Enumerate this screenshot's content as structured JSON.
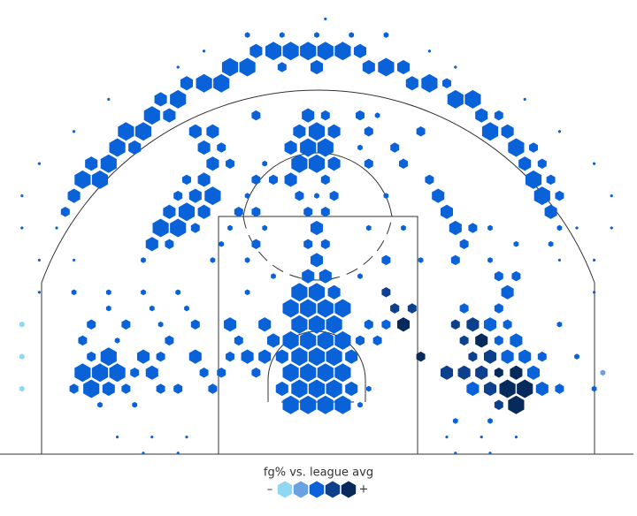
{
  "chart_data": {
    "type": "hexbin",
    "legend_title": "fg% vs. league avg",
    "legend_low": "–",
    "legend_high": "+",
    "colors": [
      "#8fd8f2",
      "#6aa1e3",
      "#0a62d8",
      "#0c3f8c",
      "#062a5c"
    ],
    "hexes": [
      [
        -2.1,
        -1.3,
        10,
        2
      ],
      [
        -0.7,
        -1.3,
        10,
        2
      ],
      [
        0.7,
        -1.3,
        10,
        2
      ],
      [
        2.1,
        -1.3,
        10,
        2
      ],
      [
        -2.8,
        0,
        6,
        2
      ],
      [
        -1.4,
        0,
        10,
        2
      ],
      [
        0,
        0,
        10,
        2
      ],
      [
        1.4,
        0,
        10,
        2
      ],
      [
        2.8,
        0,
        6,
        2
      ],
      [
        -2.1,
        1.3,
        10,
        2
      ],
      [
        -0.7,
        1.3,
        10,
        2
      ],
      [
        0.7,
        1.3,
        10,
        2
      ],
      [
        2.1,
        1.3,
        10,
        2
      ],
      [
        -2.8,
        2.6,
        6,
        2
      ],
      [
        -1.4,
        2.6,
        10,
        2
      ],
      [
        0,
        2.6,
        10,
        2
      ],
      [
        1.4,
        2.6,
        10,
        2
      ],
      [
        2.8,
        2.6,
        6,
        2
      ],
      [
        -2.1,
        3.9,
        10,
        2
      ],
      [
        -0.7,
        3.9,
        10,
        2
      ],
      [
        0.7,
        3.9,
        10,
        2
      ],
      [
        2.1,
        3.9,
        10,
        2
      ],
      [
        -1.4,
        5.2,
        10,
        2
      ],
      [
        0,
        5.2,
        10,
        2
      ],
      [
        1.4,
        5.2,
        10,
        2
      ],
      [
        -2.1,
        6.5,
        10,
        2
      ],
      [
        -0.7,
        6.5,
        10,
        2
      ],
      [
        0.7,
        6.5,
        10,
        2
      ],
      [
        2.1,
        6.5,
        10,
        2
      ],
      [
        -1.4,
        7.8,
        10,
        2
      ],
      [
        0,
        7.8,
        10,
        2
      ],
      [
        1.4,
        7.8,
        6,
        2
      ],
      [
        -0.7,
        9.1,
        6,
        2
      ],
      [
        0.7,
        9.1,
        6,
        2
      ],
      [
        0,
        10.4,
        6,
        2
      ],
      [
        -0.7,
        11.7,
        3,
        2
      ],
      [
        0.7,
        11.7,
        3,
        2
      ],
      [
        0,
        13,
        6,
        2
      ],
      [
        -0.7,
        14.3,
        3,
        2
      ],
      [
        0.7,
        14.3,
        3,
        2
      ],
      [
        -4.2,
        5.2,
        6,
        2
      ],
      [
        -7,
        5.2,
        6,
        2
      ],
      [
        -6.3,
        3.9,
        3,
        2
      ],
      [
        -3.5,
        3.9,
        6,
        2
      ],
      [
        -7,
        2.6,
        3,
        2
      ],
      [
        -5.6,
        2.6,
        6,
        2
      ],
      [
        -4.2,
        2.6,
        6,
        2
      ],
      [
        -4.9,
        1.3,
        3,
        2
      ],
      [
        -7.7,
        1.3,
        3,
        2
      ],
      [
        3.5,
        3.9,
        3,
        2
      ],
      [
        4.9,
        3.9,
        3,
        2
      ],
      [
        4.2,
        5.2,
        3,
        2
      ],
      [
        5.6,
        5.2,
        3,
        2
      ],
      [
        6.3,
        6.5,
        3,
        2
      ],
      [
        4.2,
        0,
        1,
        2
      ],
      [
        3.5,
        -1.3,
        1,
        2
      ],
      [
        -1.4,
        18.2,
        10,
        2
      ],
      [
        0,
        18.2,
        10,
        2
      ],
      [
        1.4,
        18.2,
        6,
        2
      ],
      [
        -0.7,
        19.5,
        10,
        2
      ],
      [
        0.7,
        19.5,
        10,
        2
      ],
      [
        -2.1,
        19.5,
        6,
        2
      ],
      [
        0,
        20.8,
        10,
        2
      ],
      [
        -1.4,
        20.8,
        6,
        2
      ],
      [
        1.4,
        20.8,
        6,
        2
      ],
      [
        -0.7,
        22.1,
        6,
        2
      ],
      [
        0.7,
        22.1,
        3,
        2
      ],
      [
        -2.1,
        16.9,
        6,
        2
      ],
      [
        0.7,
        16.9,
        3,
        2
      ],
      [
        -1.4,
        15.6,
        3,
        2
      ],
      [
        1.4,
        15.6,
        3,
        2
      ],
      [
        0,
        15.6,
        1,
        2
      ],
      [
        -0.7,
        27.3,
        10,
        2
      ],
      [
        0.7,
        27.3,
        10,
        2
      ],
      [
        -2.1,
        27.3,
        10,
        2
      ],
      [
        2.1,
        27.3,
        10,
        2
      ],
      [
        -3.5,
        27.3,
        10,
        2
      ],
      [
        3.5,
        27.3,
        6,
        2
      ],
      [
        -4.9,
        27.3,
        6,
        2
      ],
      [
        -5.6,
        26,
        10,
        2
      ],
      [
        -7,
        26,
        10,
        2
      ],
      [
        5.6,
        26,
        10,
        2
      ],
      [
        7,
        26,
        6,
        2
      ],
      [
        0,
        26,
        6,
        2
      ],
      [
        -2.8,
        26,
        3,
        2
      ],
      [
        4.2,
        26,
        6,
        2
      ],
      [
        -7.7,
        24.7,
        10,
        2
      ],
      [
        -9.1,
        24.7,
        10,
        2
      ],
      [
        7.7,
        24.7,
        6,
        2
      ],
      [
        9.1,
        24.7,
        10,
        2
      ],
      [
        -10.5,
        24.7,
        6,
        2
      ],
      [
        10.5,
        24.7,
        3,
        2
      ],
      [
        -11.2,
        23.4,
        10,
        2
      ],
      [
        -12.6,
        23.4,
        6,
        2
      ],
      [
        11.2,
        23.4,
        10,
        2
      ],
      [
        12.6,
        23.4,
        10,
        2
      ],
      [
        -13.3,
        22.1,
        10,
        2
      ],
      [
        -11.9,
        22.1,
        6,
        2
      ],
      [
        13.3,
        22.1,
        6,
        2
      ],
      [
        14.7,
        22.1,
        3,
        2
      ],
      [
        -14,
        20.8,
        10,
        2
      ],
      [
        -15.4,
        20.8,
        10,
        2
      ],
      [
        14,
        20.8,
        10,
        2
      ],
      [
        15.4,
        20.8,
        6,
        2
      ],
      [
        -16.1,
        19.5,
        10,
        2
      ],
      [
        -14.7,
        19.5,
        6,
        2
      ],
      [
        16.1,
        19.5,
        10,
        2
      ],
      [
        17.5,
        19.5,
        3,
        2
      ],
      [
        -16.8,
        18.2,
        10,
        2
      ],
      [
        -18.2,
        18.2,
        6,
        2
      ],
      [
        16.8,
        18.2,
        6,
        2
      ],
      [
        18.2,
        18.2,
        3,
        2
      ],
      [
        -17.5,
        16.9,
        10,
        2
      ],
      [
        -18.9,
        16.9,
        10,
        2
      ],
      [
        17.5,
        16.9,
        10,
        2
      ],
      [
        18.9,
        16.9,
        3,
        2
      ],
      [
        -19.6,
        15.6,
        6,
        2
      ],
      [
        18.2,
        15.6,
        10,
        2
      ],
      [
        19.6,
        15.6,
        3,
        2
      ],
      [
        -20.3,
        14.3,
        3,
        2
      ],
      [
        18.9,
        14.3,
        6,
        2
      ],
      [
        0,
        28.6,
        1,
        2
      ],
      [
        -2.8,
        28.6,
        1,
        2
      ],
      [
        2.8,
        28.6,
        1,
        2
      ],
      [
        -5.6,
        28.6,
        1,
        2
      ],
      [
        5.6,
        28.6,
        1,
        2
      ],
      [
        0.7,
        29.9,
        0.3,
        2
      ],
      [
        -9.1,
        16.9,
        6,
        2
      ],
      [
        -10.5,
        16.9,
        3,
        2
      ],
      [
        -8.4,
        15.6,
        10,
        2
      ],
      [
        -9.8,
        15.6,
        6,
        2
      ],
      [
        -11.2,
        15.6,
        3,
        2
      ],
      [
        -9.1,
        14.3,
        6,
        2
      ],
      [
        -10.5,
        14.3,
        10,
        2
      ],
      [
        -11.9,
        14.3,
        6,
        2
      ],
      [
        -11.2,
        13,
        10,
        2
      ],
      [
        -12.6,
        13,
        10,
        2
      ],
      [
        -9.8,
        13,
        3,
        2
      ],
      [
        -13.3,
        11.7,
        6,
        2
      ],
      [
        -11.9,
        11.7,
        3,
        2
      ],
      [
        -8.4,
        18.2,
        6,
        2
      ],
      [
        -7,
        18.2,
        3,
        2
      ],
      [
        -9.1,
        19.5,
        6,
        2
      ],
      [
        -7.7,
        19.5,
        3,
        2
      ],
      [
        -9.8,
        20.8,
        6,
        2
      ],
      [
        -8.4,
        20.8,
        6,
        2
      ],
      [
        -4.9,
        16.9,
        3,
        2
      ],
      [
        -3.5,
        16.9,
        3,
        2
      ],
      [
        -4.9,
        14.3,
        3,
        2
      ],
      [
        -6.3,
        14.3,
        3,
        2
      ],
      [
        -4.9,
        22.1,
        3,
        2
      ],
      [
        -7.7,
        11.7,
        1,
        2
      ],
      [
        -4.9,
        11.7,
        3,
        2
      ],
      [
        9.8,
        15.6,
        6,
        2
      ],
      [
        10.5,
        14.3,
        6,
        2
      ],
      [
        11.2,
        13,
        6,
        2
      ],
      [
        12.6,
        13,
        3,
        2
      ],
      [
        11.9,
        11.7,
        3,
        2
      ],
      [
        9.1,
        16.9,
        3,
        2
      ],
      [
        7,
        18.2,
        3,
        2
      ],
      [
        6.3,
        19.5,
        3,
        2
      ],
      [
        4.2,
        20.8,
        3,
        2
      ],
      [
        8.4,
        20.8,
        3,
        2
      ],
      [
        -16.8,
        2.6,
        10,
        2
      ],
      [
        -18.2,
        2.6,
        3,
        2
      ],
      [
        -14,
        2.6,
        6,
        2
      ],
      [
        -12.6,
        2.6,
        3,
        2
      ],
      [
        -17.5,
        1.3,
        10,
        2
      ],
      [
        -16.1,
        1.3,
        10,
        2
      ],
      [
        -18.9,
        1.3,
        10,
        2
      ],
      [
        -14.7,
        1.3,
        3,
        2
      ],
      [
        -13.3,
        1.3,
        6,
        2
      ],
      [
        -18.2,
        0,
        10,
        2
      ],
      [
        -16.8,
        0,
        6,
        2
      ],
      [
        -19.6,
        0,
        3,
        2
      ],
      [
        -15.4,
        0,
        3,
        2
      ],
      [
        -12.6,
        0,
        3,
        2
      ],
      [
        -11.2,
        0,
        3,
        2
      ],
      [
        -18.9,
        3.9,
        3,
        2
      ],
      [
        -16.1,
        3.9,
        1,
        2
      ],
      [
        -17.5,
        -1.3,
        1,
        2
      ],
      [
        -14.7,
        -1.3,
        1,
        2
      ],
      [
        -18.2,
        5.2,
        3,
        2
      ],
      [
        -15.4,
        5.2,
        3,
        2
      ],
      [
        -12.6,
        5.2,
        1,
        2
      ],
      [
        -9.8,
        5.2,
        3,
        2
      ],
      [
        -11.9,
        3.9,
        3,
        2
      ],
      [
        -9.1,
        1.3,
        3,
        2
      ],
      [
        -9.8,
        2.6,
        6,
        2
      ],
      [
        -8.4,
        0,
        3,
        2
      ],
      [
        -16.8,
        6.5,
        1,
        2
      ],
      [
        -13.3,
        6.5,
        1,
        2
      ],
      [
        -10.5,
        6.5,
        1,
        2
      ],
      [
        -11.2,
        7.8,
        1,
        2
      ],
      [
        -14,
        7.8,
        1,
        2
      ],
      [
        -16.8,
        7.8,
        1,
        2
      ],
      [
        -19.6,
        7.8,
        1,
        2
      ],
      [
        -23.8,
        0,
        1,
        0
      ],
      [
        -23.8,
        2.6,
        1,
        0
      ],
      [
        -23.8,
        5.2,
        1,
        0
      ],
      [
        15.4,
        0,
        10,
        4
      ],
      [
        16.8,
        0,
        10,
        4
      ],
      [
        12.6,
        0,
        6,
        2
      ],
      [
        14,
        0,
        6,
        3
      ],
      [
        18.2,
        0,
        6,
        2
      ],
      [
        19.6,
        0,
        3,
        2
      ],
      [
        16.1,
        -1.3,
        10,
        4
      ],
      [
        14.7,
        -1.3,
        3,
        3
      ],
      [
        16.1,
        1.3,
        6,
        4
      ],
      [
        11.9,
        1.3,
        6,
        3
      ],
      [
        13.3,
        1.3,
        6,
        3
      ],
      [
        10.5,
        1.3,
        6,
        3
      ],
      [
        17.5,
        1.3,
        6,
        2
      ],
      [
        14.7,
        1.3,
        3,
        4
      ],
      [
        12.6,
        2.6,
        3,
        3
      ],
      [
        14,
        2.6,
        6,
        3
      ],
      [
        15.4,
        2.6,
        6,
        2
      ],
      [
        16.8,
        2.6,
        6,
        2
      ],
      [
        8.4,
        2.6,
        3,
        4
      ],
      [
        18.2,
        2.6,
        3,
        2
      ],
      [
        11.9,
        3.9,
        3,
        3
      ],
      [
        13.3,
        3.9,
        6,
        4
      ],
      [
        14.7,
        3.9,
        3,
        2
      ],
      [
        16.1,
        3.9,
        6,
        2
      ],
      [
        11.2,
        5.2,
        3,
        3
      ],
      [
        12.6,
        5.2,
        6,
        3
      ],
      [
        14,
        5.2,
        6,
        2
      ],
      [
        15.4,
        5.2,
        3,
        2
      ],
      [
        7,
        5.2,
        6,
        4
      ],
      [
        14.7,
        6.5,
        3,
        2
      ],
      [
        11.9,
        6.5,
        3,
        2
      ],
      [
        6.3,
        6.5,
        3,
        3
      ],
      [
        7.7,
        6.5,
        3,
        3
      ],
      [
        15.4,
        7.8,
        6,
        2
      ],
      [
        5.6,
        7.8,
        3,
        3
      ],
      [
        16.1,
        9.1,
        3,
        2
      ],
      [
        14.7,
        9.1,
        3,
        2
      ],
      [
        11.2,
        10.4,
        3,
        2
      ],
      [
        5.6,
        10.4,
        3,
        2
      ],
      [
        14,
        -2.6,
        1,
        2
      ],
      [
        11.2,
        -2.6,
        1,
        2
      ],
      [
        16.1,
        11.7,
        1,
        2
      ],
      [
        18.9,
        11.7,
        1,
        2
      ],
      [
        14,
        13,
        1,
        2
      ],
      [
        19.6,
        13,
        1,
        2
      ],
      [
        19.6,
        5.2,
        1,
        2
      ],
      [
        21,
        2.6,
        1,
        2
      ],
      [
        22.4,
        0,
        1,
        2
      ],
      [
        23.1,
        1.3,
        1,
        1
      ],
      [
        -16.1,
        -3.9,
        0.3,
        2
      ],
      [
        -13.3,
        -3.9,
        0.3,
        2
      ],
      [
        -10.5,
        -3.9,
        0.3,
        2
      ],
      [
        10.5,
        -3.9,
        0.3,
        2
      ],
      [
        13.3,
        -3.9,
        0.3,
        2
      ],
      [
        16.1,
        -3.9,
        0.3,
        2
      ],
      [
        -14,
        -5.2,
        0.3,
        2
      ],
      [
        -11.2,
        -5.2,
        0.3,
        2
      ],
      [
        11.2,
        -5.2,
        0.3,
        2
      ],
      [
        14,
        -5.2,
        0.3,
        2
      ],
      [
        -9.1,
        27.3,
        0.3,
        2
      ],
      [
        9.1,
        27.3,
        0.3,
        2
      ],
      [
        -11.2,
        26,
        0.3,
        2
      ],
      [
        11.2,
        26,
        0.3,
        2
      ],
      [
        -16.8,
        23.4,
        0.3,
        2
      ],
      [
        16.8,
        23.4,
        0.3,
        2
      ],
      [
        -19.6,
        20.8,
        0.3,
        2
      ],
      [
        19.6,
        20.8,
        0.3,
        2
      ],
      [
        -22.4,
        18.2,
        0.3,
        2
      ],
      [
        22.4,
        18.2,
        0.3,
        2
      ],
      [
        -23.8,
        15.6,
        0.3,
        2
      ],
      [
        23.8,
        15.6,
        0.3,
        2
      ],
      [
        -23.8,
        13,
        0.3,
        2
      ],
      [
        23.8,
        13,
        0.3,
        2
      ],
      [
        -21,
        13,
        0.3,
        2
      ],
      [
        21,
        13,
        0.3,
        2
      ],
      [
        -22.4,
        10.4,
        0.3,
        2
      ],
      [
        -19.6,
        10.4,
        0.3,
        2
      ],
      [
        19.6,
        10.4,
        0.3,
        2
      ],
      [
        22.4,
        10.4,
        0.3,
        2
      ],
      [
        -22.4,
        7.8,
        0.3,
        2
      ],
      [
        22.4,
        7.8,
        0.3,
        2
      ],
      [
        -5.6,
        10.4,
        1,
        2
      ],
      [
        -8.4,
        10.4,
        1,
        2
      ],
      [
        -14,
        10.4,
        1,
        2
      ],
      [
        8.4,
        10.4,
        1,
        2
      ],
      [
        14,
        10.4,
        1,
        2
      ],
      [
        -3.5,
        9.1,
        1,
        2
      ],
      [
        3.5,
        9.1,
        1,
        2
      ],
      [
        -5.6,
        7.8,
        1,
        2
      ],
      [
        -4.2,
        13,
        1,
        2
      ],
      [
        4.2,
        13,
        1,
        2
      ],
      [
        -7,
        13,
        1,
        2
      ],
      [
        7,
        13,
        1,
        2
      ],
      [
        -5.6,
        15.6,
        1,
        2
      ],
      [
        5.6,
        15.6,
        1,
        2
      ],
      [
        -4.2,
        18.2,
        1,
        2
      ],
      [
        4.2,
        18.2,
        3,
        2
      ],
      [
        3.5,
        19.5,
        1,
        2
      ],
      [
        3.5,
        22.1,
        3,
        2
      ],
      [
        4.9,
        22.1,
        1,
        2
      ]
    ]
  }
}
